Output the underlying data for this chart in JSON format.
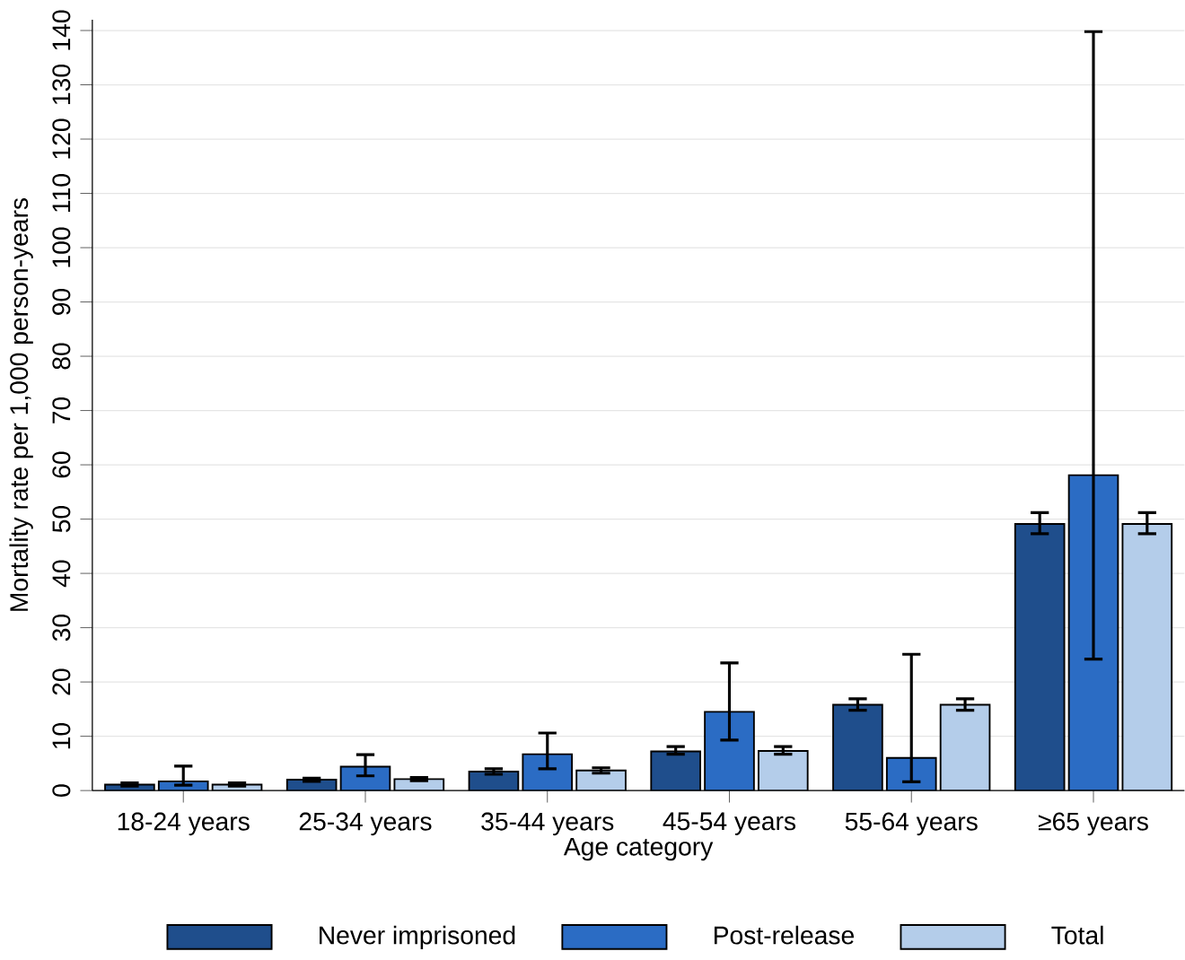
{
  "chart_data": {
    "type": "bar",
    "xlabel": "Age category",
    "ylabel": "Mortality rate per 1,000 person-years",
    "categories": [
      "18-24 years",
      "25-34 years",
      "35-44 years",
      "45-54 years",
      "55-64 years",
      "≥65 years"
    ],
    "series": [
      {
        "name": "Never imprisoned",
        "color": "#1f4e8c",
        "values": [
          1.1,
          2.0,
          3.5,
          7.2,
          15.8,
          49.1
        ],
        "errors": [
          [
            0.8,
            1.4
          ],
          [
            1.7,
            2.3
          ],
          [
            3.0,
            4.0
          ],
          [
            6.7,
            8.1
          ],
          [
            14.8,
            16.9
          ],
          [
            47.3,
            51.2
          ]
        ]
      },
      {
        "name": "Post-release",
        "color": "#2b6cc4",
        "values": [
          1.7,
          4.4,
          6.7,
          14.5,
          6.0,
          58.1
        ],
        "errors": [
          [
            1.0,
            4.5
          ],
          [
            2.7,
            6.6
          ],
          [
            4.0,
            10.6
          ],
          [
            9.3,
            23.5
          ],
          [
            1.6,
            25.1
          ],
          [
            24.2,
            139.8
          ]
        ]
      },
      {
        "name": "Total",
        "color": "#b4cdea",
        "values": [
          1.1,
          2.1,
          3.7,
          7.3,
          15.8,
          49.1
        ],
        "errors": [
          [
            0.8,
            1.4
          ],
          [
            1.8,
            2.4
          ],
          [
            3.2,
            4.2
          ],
          [
            6.7,
            8.1
          ],
          [
            14.8,
            16.9
          ],
          [
            47.3,
            51.2
          ]
        ]
      }
    ],
    "ylim": [
      0,
      142
    ],
    "yticks": [
      0,
      10,
      20,
      30,
      40,
      50,
      60,
      70,
      80,
      90,
      100,
      110,
      120,
      130,
      140
    ],
    "grid": "y",
    "legend": "bottom"
  }
}
